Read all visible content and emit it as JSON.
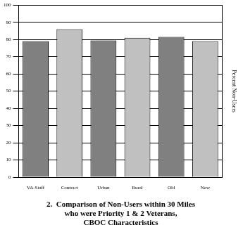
{
  "chart_data": {
    "type": "bar",
    "title": [
      "2.  Comparison of Non-Users within 30 Miles",
      "who were Priority 1 & 2 Veterans,",
      "CBOC Characteristics"
    ],
    "ylabel": "Percent Non-Users",
    "categories": [
      "VA-Staff",
      "Contract",
      "Urban",
      "Rural",
      "Old",
      "New"
    ],
    "values": [
      79,
      86,
      79.5,
      81,
      81.5,
      79
    ],
    "colors": [
      "#808080",
      "#c0c0c0",
      "#808080",
      "#c0c0c0",
      "#808080",
      "#c0c0c0"
    ],
    "ylim": [
      0,
      100
    ],
    "yticks": [
      0,
      10,
      20,
      30,
      40,
      50,
      60,
      70,
      80,
      90,
      100
    ],
    "grid": true
  }
}
